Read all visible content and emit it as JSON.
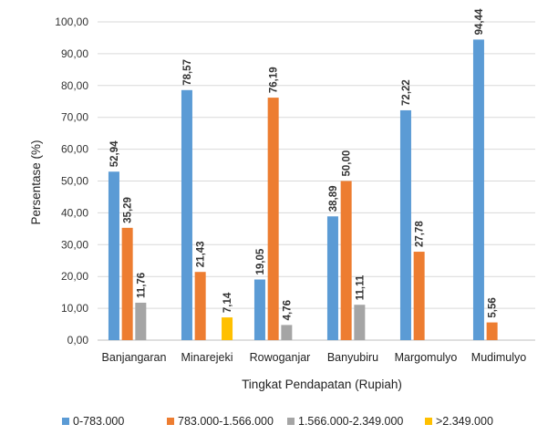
{
  "chart_data": {
    "type": "bar",
    "title": "",
    "xlabel": "Tingkat Pendapatan (Rupiah)",
    "ylabel": "Persentase (%)",
    "ylim": [
      0,
      100
    ],
    "yticks": [
      "0,00",
      "10,00",
      "20,00",
      "30,00",
      "40,00",
      "50,00",
      "60,00",
      "70,00",
      "80,00",
      "90,00",
      "100,00"
    ],
    "grid": true,
    "legend_position": "bottom",
    "categories": [
      "Banjangaran",
      "Minarejeki",
      "Rowoganjar",
      "Banyubiru",
      "Margomulyo",
      "Mudimulyo"
    ],
    "series": [
      {
        "name": "0-783.000",
        "color": "#5B9BD5",
        "values": [
          52.94,
          78.57,
          19.05,
          38.89,
          72.22,
          94.44
        ],
        "labels": [
          "52,94",
          "78,57",
          "19,05",
          "38,89",
          "72,22",
          "94,44"
        ]
      },
      {
        "name": "783.000-1.566.000",
        "color": "#ED7D31",
        "values": [
          35.29,
          21.43,
          76.19,
          50.0,
          27.78,
          5.56
        ],
        "labels": [
          "35,29",
          "21,43",
          "76,19",
          "50,00",
          "27,78",
          "5,56"
        ]
      },
      {
        "name": "1.566.000-2.349.000",
        "color": "#A5A5A5",
        "values": [
          11.76,
          null,
          4.76,
          11.11,
          null,
          null
        ],
        "labels": [
          "11,76",
          null,
          "4,76",
          "11,11",
          null,
          null
        ]
      },
      {
        "name": ">2.349.000",
        "color": "#FFC000",
        "values": [
          null,
          7.14,
          null,
          null,
          null,
          null
        ],
        "labels": [
          null,
          "7,14",
          null,
          null,
          null,
          null
        ]
      }
    ]
  }
}
